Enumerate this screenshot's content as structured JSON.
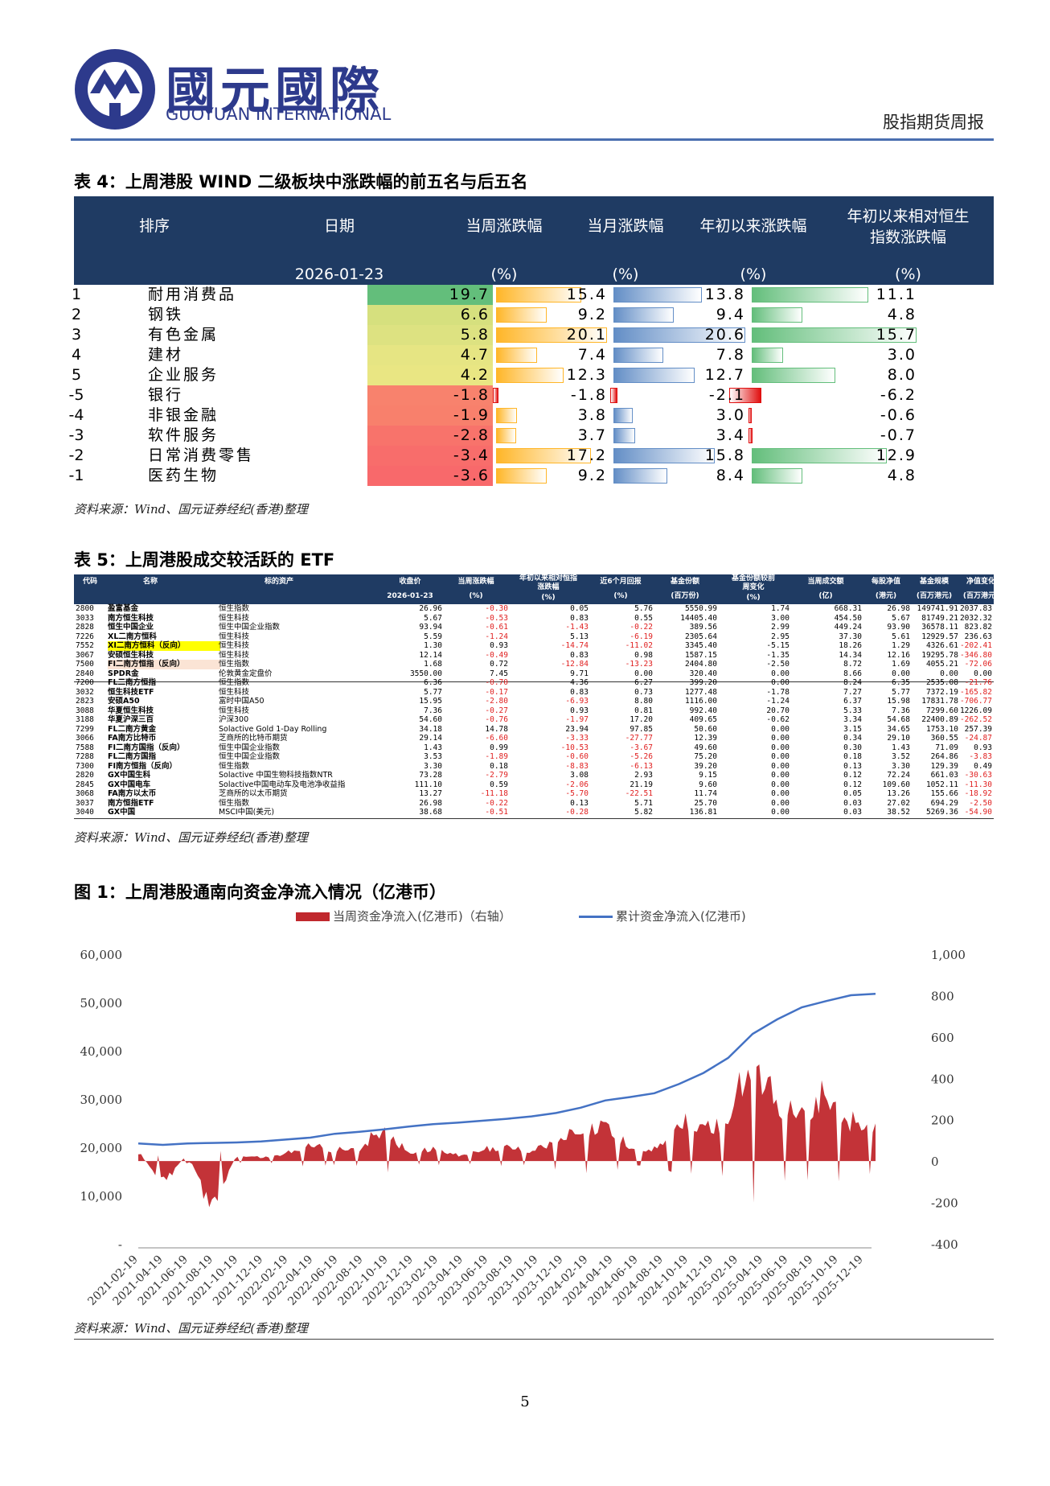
{
  "header": {
    "brand_cn": "國元國際",
    "brand_en": "GUOYUAN INTERNATIONAL",
    "report_title": "股指期货周报"
  },
  "table4": {
    "title": "表 4：上周港股 WIND 二级板块中涨跌幅的前五名与后五名",
    "headers": {
      "rank": "排序",
      "date": "日期",
      "date_value": "2026-01-23",
      "week": "当周涨跌幅",
      "month": "当月涨跌幅",
      "ytd": "年初以来涨跌幅",
      "rel_line1": "年初以来相对恒生",
      "rel_line2": "指数涨跌幅",
      "unit": "(%)"
    },
    "rows": [
      {
        "rank": "1",
        "name": "耐用消费品",
        "week": "19.7",
        "month": "15.4",
        "ytd": "13.8",
        "rel": "11.1"
      },
      {
        "rank": "2",
        "name": "钢铁",
        "week": "6.6",
        "month": "9.2",
        "ytd": "9.4",
        "rel": "4.8"
      },
      {
        "rank": "3",
        "name": "有色金属",
        "week": "5.8",
        "month": "20.1",
        "ytd": "20.6",
        "rel": "15.7"
      },
      {
        "rank": "4",
        "name": "建材",
        "week": "4.7",
        "month": "7.4",
        "ytd": "7.8",
        "rel": "3.0"
      },
      {
        "rank": "5",
        "name": "企业服务",
        "week": "4.2",
        "month": "12.3",
        "ytd": "12.7",
        "rel": "8.0"
      },
      {
        "rank": "-5",
        "name": "银行",
        "week": "-1.8",
        "month": "-1.8",
        "ytd": "-2.1",
        "rel": "-6.2"
      },
      {
        "rank": "-4",
        "name": "非银金融",
        "week": "-1.9",
        "month": "3.8",
        "ytd": "3.0",
        "rel": "-0.6"
      },
      {
        "rank": "-3",
        "name": "软件服务",
        "week": "-2.8",
        "month": "3.7",
        "ytd": "3.4",
        "rel": "-0.7"
      },
      {
        "rank": "-2",
        "name": "日常消费零售",
        "week": "-3.4",
        "month": "17.2",
        "ytd": "15.8",
        "rel": "12.9"
      },
      {
        "rank": "-1",
        "name": "医药生物",
        "week": "-3.6",
        "month": "9.2",
        "ytd": "8.4",
        "rel": "4.8"
      }
    ],
    "week_colors": [
      "#63be7b",
      "#d6e07e",
      "#dde281",
      "#e6e583",
      "#e9e683",
      "#f8826d",
      "#f8806c",
      "#f8736b",
      "#f86d6b",
      "#f8696b"
    ],
    "source": "资料来源：Wind、国元证券经纪(香港)整理"
  },
  "table5": {
    "title": "表 5：上周港股成交较活跃的 ETF",
    "headers": {
      "code": "代码",
      "name": "名称",
      "underlying": "标的资产",
      "close": "收盘价",
      "close_sub": "2026-01-23",
      "week": "当周涨跌幅",
      "week_sub": "(%)",
      "rel_line1": "年初以来相对恒指",
      "rel_line2": "涨跌幅",
      "rel_sub": "(%)",
      "m6": "近6个月回报",
      "m6_sub": "(%)",
      "share": "基金份额",
      "share_sub": "(百万份)",
      "chg_line1": "基金份额较前",
      "chg_line2": "周变化",
      "chg_sub": "(%)",
      "turnover": "当周成交额",
      "turnover_sub": "(亿)",
      "nav": "每股净值",
      "nav_sub": "(港元)",
      "size": "基金规模",
      "size_sub": "(百万港元)",
      "navchg": "净值变化",
      "navchg_sub": "(百万港元)"
    },
    "rows": [
      [
        "2800",
        "盈富基金",
        "恒生指数",
        "26.96",
        "-0.30",
        "0.05",
        "5.76",
        "5550.99",
        "1.74",
        "668.31",
        "26.98",
        "149741.91",
        "2037.83"
      ],
      [
        "3033",
        "南方恒生科技",
        "恒生科技",
        "5.67",
        "-0.53",
        "0.83",
        "0.55",
        "14405.40",
        "3.00",
        "454.50",
        "5.67",
        "81749.21",
        "2032.32"
      ],
      [
        "2828",
        "恒生中国企业",
        "恒生中国企业指数",
        "93.94",
        "-0.61",
        "-1.43",
        "-0.22",
        "389.56",
        "2.99",
        "449.24",
        "93.90",
        "36578.11",
        "823.82"
      ],
      [
        "7226",
        "XL二南方恒科",
        "恒生科技",
        "5.59",
        "-1.24",
        "5.13",
        "-6.19",
        "2305.64",
        "2.95",
        "37.30",
        "5.61",
        "12929.57",
        "236.63"
      ],
      [
        "7552",
        "XI二南方恒科（反向）",
        "恒生科技",
        "1.30",
        "0.93",
        "-14.74",
        "-11.02",
        "3345.40",
        "-5.15",
        "18.26",
        "1.29",
        "4326.61",
        "-202.41"
      ],
      [
        "3067",
        "安硕恒生科技",
        "恒生科技",
        "12.14",
        "-0.49",
        "0.83",
        "0.98",
        "1587.15",
        "-1.35",
        "14.34",
        "12.16",
        "19295.78",
        "-346.80"
      ],
      [
        "7500",
        "FI二南方恒指（反向）",
        "恒生指数",
        "1.68",
        "0.72",
        "-12.84",
        "-13.23",
        "2404.80",
        "-2.50",
        "8.72",
        "1.69",
        "4055.21",
        "-72.06"
      ],
      [
        "2840",
        "SPDR金",
        "伦敦黄金定盘价",
        "3550.00",
        "7.45",
        "9.71",
        "0.00",
        "320.40",
        "0.00",
        "8.66",
        "0.00",
        "0.00",
        "0.00"
      ],
      [
        "7200",
        "FL二南方恒指",
        "恒生指数",
        "6.36",
        "-0.70",
        "4.36",
        "6.27",
        "399.20",
        "0.00",
        "8.24",
        "6.35",
        "2535.08",
        "-21.76"
      ],
      [
        "3032",
        "恒生科技ETF",
        "恒生科技",
        "5.77",
        "-0.17",
        "0.83",
        "0.73",
        "1277.48",
        "-1.78",
        "7.27",
        "5.77",
        "7372.19",
        "-165.82"
      ],
      [
        "2823",
        "安硕A50",
        "富时中国A50",
        "15.95",
        "-2.80",
        "-6.93",
        "8.80",
        "1116.00",
        "-1.24",
        "6.37",
        "15.98",
        "17831.78",
        "-706.77"
      ],
      [
        "3088",
        "华夏恒生科技",
        "恒生科技",
        "7.36",
        "-0.27",
        "0.93",
        "0.81",
        "992.40",
        "20.70",
        "5.33",
        "7.36",
        "7299.60",
        "1226.09"
      ],
      [
        "3188",
        "华夏沪深三百",
        "沪深300",
        "54.60",
        "-0.76",
        "-1.97",
        "17.20",
        "409.65",
        "-0.62",
        "3.34",
        "54.68",
        "22400.89",
        "-262.52"
      ],
      [
        "7299",
        "FL二南方黄金",
        "Solactive Gold 1-Day Rolling",
        "34.18",
        "14.78",
        "23.94",
        "97.85",
        "50.60",
        "0.00",
        "3.15",
        "34.65",
        "1753.10",
        "257.39"
      ],
      [
        "3066",
        "FA南方比特币",
        "芝商所的比特币期货",
        "29.14",
        "-6.60",
        "-3.33",
        "-27.77",
        "12.39",
        "0.00",
        "0.34",
        "29.10",
        "360.55",
        "-24.87"
      ],
      [
        "7588",
        "FI二南方国指（反向）",
        "恒生中国企业指数",
        "1.43",
        "0.99",
        "-10.53",
        "-3.67",
        "49.60",
        "0.00",
        "0.30",
        "1.43",
        "71.09",
        "0.93"
      ],
      [
        "7288",
        "FL二南方国指",
        "恒生中国企业指数",
        "3.53",
        "-1.89",
        "-0.60",
        "-5.26",
        "75.20",
        "0.00",
        "0.18",
        "3.52",
        "264.86",
        "-3.83"
      ],
      [
        "7300",
        "FI南方恒指（反向）",
        "恒生指数",
        "3.30",
        "0.18",
        "-8.83",
        "-6.13",
        "39.20",
        "0.00",
        "0.13",
        "3.30",
        "129.39",
        "0.49"
      ],
      [
        "2820",
        "GX中国生科",
        "Solactive 中国生物科技指数NTR",
        "73.28",
        "-2.79",
        "3.08",
        "2.93",
        "9.15",
        "0.00",
        "0.12",
        "72.24",
        "661.03",
        "-30.63"
      ],
      [
        "2845",
        "GX中国电车",
        "Solactive中国电动车及电池净收益指",
        "111.10",
        "0.59",
        "-2.06",
        "21.19",
        "9.60",
        "0.00",
        "0.12",
        "109.60",
        "1052.11",
        "-11.30"
      ],
      [
        "3068",
        "FA南方以太币",
        "芝商所的以太币期货",
        "13.27",
        "-11.18",
        "-5.70",
        "-22.51",
        "11.74",
        "0.00",
        "0.05",
        "13.26",
        "155.66",
        "-18.92"
      ],
      [
        "3037",
        "南方恒指ETF",
        "恒生指数",
        "26.98",
        "-0.22",
        "0.13",
        "5.71",
        "25.70",
        "0.00",
        "0.03",
        "27.02",
        "694.29",
        "-2.50"
      ],
      [
        "3040",
        "GX中国",
        "MSCI中国(美元)",
        "38.68",
        "-0.51",
        "-0.28",
        "5.82",
        "136.81",
        "0.00",
        "0.03",
        "38.52",
        "5269.36",
        "-54.90"
      ]
    ],
    "highlight_rows": {
      "4": "#ffff00",
      "6": "#fbe4d5"
    },
    "source": "资料来源：Wind、国元证券经纪(香港)整理"
  },
  "figure1": {
    "title": "图 1：上周港股通南向资金净流入情况（亿港币）",
    "source": "资料来源：Wind、国元证券经纪(香港)整理",
    "page_number": "5"
  },
  "chart_data": {
    "type": "area",
    "series": [
      {
        "name": "当周资金净流入(亿港币)（右轴）",
        "kind": "area",
        "axis": "right",
        "color": "#c0282d",
        "x": [
          "2021-02-19",
          "2021-04",
          "2021-06",
          "2021-08",
          "2021-10",
          "2021-12",
          "2022-02",
          "2022-04",
          "2022-06",
          "2022-08",
          "2022-10",
          "2022-12",
          "2023-02",
          "2023-04",
          "2023-06",
          "2023-08",
          "2023-10",
          "2023-12",
          "2024-02",
          "2024-04",
          "2024-06",
          "2024-08",
          "2024-10",
          "2024-12",
          "2025-02",
          "2025-04",
          "2025-06",
          "2025-08",
          "2025-10",
          "2025-12",
          "2026-01"
        ],
        "values": [
          50,
          -120,
          40,
          -260,
          30,
          20,
          40,
          90,
          60,
          70,
          180,
          40,
          70,
          30,
          60,
          80,
          50,
          120,
          160,
          200,
          70,
          60,
          210,
          180,
          220,
          580,
          300,
          260,
          360,
          210,
          180
        ]
      },
      {
        "name": "累计资金净流入(亿港币)",
        "kind": "line",
        "axis": "left",
        "color": "#4472c4",
        "x": [
          "2021-02-19",
          "2021-04",
          "2021-06",
          "2021-08",
          "2021-10",
          "2021-12",
          "2022-02",
          "2022-04",
          "2022-06",
          "2022-08",
          "2022-10",
          "2022-12",
          "2023-02",
          "2023-04",
          "2023-06",
          "2023-08",
          "2023-10",
          "2023-12",
          "2024-02",
          "2024-04",
          "2024-06",
          "2024-08",
          "2024-10",
          "2024-12",
          "2025-02",
          "2025-04",
          "2025-06",
          "2025-08",
          "2025-10",
          "2025-12",
          "2026-01"
        ],
        "values": [
          20800,
          20500,
          20800,
          20900,
          21000,
          21200,
          21600,
          22000,
          22800,
          23200,
          23700,
          24300,
          24800,
          25100,
          25500,
          25900,
          26400,
          27100,
          28200,
          29700,
          30400,
          31200,
          33100,
          35400,
          38500,
          43500,
          46500,
          49000,
          50300,
          51500,
          51800
        ]
      }
    ],
    "categories": [
      "2021-02-19",
      "2021-04-19",
      "2021-06-19",
      "2021-08-19",
      "2021-10-19",
      "2021-12-19",
      "2022-02-19",
      "2022-04-19",
      "2022-06-19",
      "2022-08-19",
      "2022-10-19",
      "2022-12-19",
      "2023-02-19",
      "2023-04-19",
      "2023-06-19",
      "2023-08-19",
      "2023-10-19",
      "2023-12-19",
      "2024-02-19",
      "2024-04-19",
      "2024-06-19",
      "2024-08-19",
      "2024-10-19",
      "2024-12-19",
      "2025-02-19",
      "2025-04-19",
      "2025-06-19",
      "2025-08-19",
      "2025-10-19",
      "2025-12-19"
    ],
    "left_ticks": [
      "60,000",
      "50,000",
      "40,000",
      "30,000",
      "20,000",
      "10,000",
      "-"
    ],
    "right_ticks": [
      "1,000",
      "800",
      "600",
      "400",
      "200",
      "0",
      "-200",
      "-400"
    ],
    "ylim_left": [
      0,
      60000
    ],
    "ylim_right": [
      -400,
      1000
    ],
    "legend_position": "top"
  }
}
